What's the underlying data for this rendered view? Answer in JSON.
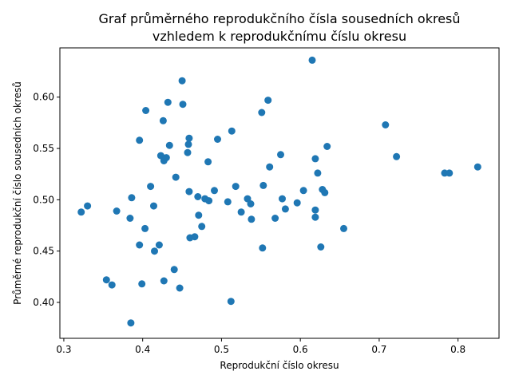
{
  "chart_data": {
    "type": "scatter",
    "title_lines": [
      "Graf průměrného reprodukčního čísla sousedních okresů",
      "vzhledem k reprodukčnímu číslu okresu"
    ],
    "xlabel": "Reprodukční číslo okresu",
    "ylabel": "Průměrné reprodukční číslo sousedních okresů",
    "xlim": [
      0.295,
      0.852
    ],
    "ylim": [
      0.365,
      0.648
    ],
    "xticks": [
      0.3,
      0.4,
      0.5,
      0.6,
      0.7,
      0.8
    ],
    "xtick_labels": [
      "0.3",
      "0.4",
      "0.5",
      "0.6",
      "0.7",
      "0.8"
    ],
    "yticks": [
      0.4,
      0.45,
      0.5,
      0.55,
      0.6
    ],
    "ytick_labels": [
      "0.40",
      "0.45",
      "0.50",
      "0.55",
      "0.60"
    ],
    "grid": false,
    "marker_color": "#1f77b4",
    "points": [
      [
        0.322,
        0.488
      ],
      [
        0.33,
        0.494
      ],
      [
        0.354,
        0.422
      ],
      [
        0.361,
        0.417
      ],
      [
        0.367,
        0.489
      ],
      [
        0.384,
        0.482
      ],
      [
        0.385,
        0.38
      ],
      [
        0.386,
        0.502
      ],
      [
        0.396,
        0.456
      ],
      [
        0.396,
        0.558
      ],
      [
        0.399,
        0.418
      ],
      [
        0.403,
        0.472
      ],
      [
        0.404,
        0.587
      ],
      [
        0.41,
        0.513
      ],
      [
        0.414,
        0.494
      ],
      [
        0.415,
        0.45
      ],
      [
        0.421,
        0.456
      ],
      [
        0.423,
        0.543
      ],
      [
        0.426,
        0.577
      ],
      [
        0.427,
        0.421
      ],
      [
        0.427,
        0.538
      ],
      [
        0.43,
        0.541
      ],
      [
        0.432,
        0.595
      ],
      [
        0.434,
        0.553
      ],
      [
        0.44,
        0.432
      ],
      [
        0.442,
        0.522
      ],
      [
        0.447,
        0.414
      ],
      [
        0.45,
        0.616
      ],
      [
        0.451,
        0.593
      ],
      [
        0.457,
        0.546
      ],
      [
        0.458,
        0.554
      ],
      [
        0.459,
        0.56
      ],
      [
        0.459,
        0.508
      ],
      [
        0.46,
        0.463
      ],
      [
        0.466,
        0.464
      ],
      [
        0.47,
        0.503
      ],
      [
        0.471,
        0.485
      ],
      [
        0.475,
        0.474
      ],
      [
        0.479,
        0.501
      ],
      [
        0.483,
        0.537
      ],
      [
        0.484,
        0.499
      ],
      [
        0.491,
        0.509
      ],
      [
        0.495,
        0.559
      ],
      [
        0.508,
        0.498
      ],
      [
        0.512,
        0.401
      ],
      [
        0.513,
        0.567
      ],
      [
        0.518,
        0.513
      ],
      [
        0.525,
        0.488
      ],
      [
        0.533,
        0.501
      ],
      [
        0.537,
        0.496
      ],
      [
        0.538,
        0.481
      ],
      [
        0.551,
        0.585
      ],
      [
        0.552,
        0.453
      ],
      [
        0.553,
        0.514
      ],
      [
        0.559,
        0.597
      ],
      [
        0.561,
        0.532
      ],
      [
        0.568,
        0.482
      ],
      [
        0.575,
        0.544
      ],
      [
        0.577,
        0.501
      ],
      [
        0.581,
        0.491
      ],
      [
        0.596,
        0.497
      ],
      [
        0.604,
        0.509
      ],
      [
        0.615,
        0.636
      ],
      [
        0.619,
        0.54
      ],
      [
        0.619,
        0.49
      ],
      [
        0.619,
        0.483
      ],
      [
        0.622,
        0.526
      ],
      [
        0.626,
        0.454
      ],
      [
        0.628,
        0.51
      ],
      [
        0.631,
        0.507
      ],
      [
        0.634,
        0.552
      ],
      [
        0.655,
        0.472
      ],
      [
        0.708,
        0.573
      ],
      [
        0.722,
        0.542
      ],
      [
        0.783,
        0.526
      ],
      [
        0.789,
        0.526
      ],
      [
        0.825,
        0.532
      ]
    ]
  }
}
